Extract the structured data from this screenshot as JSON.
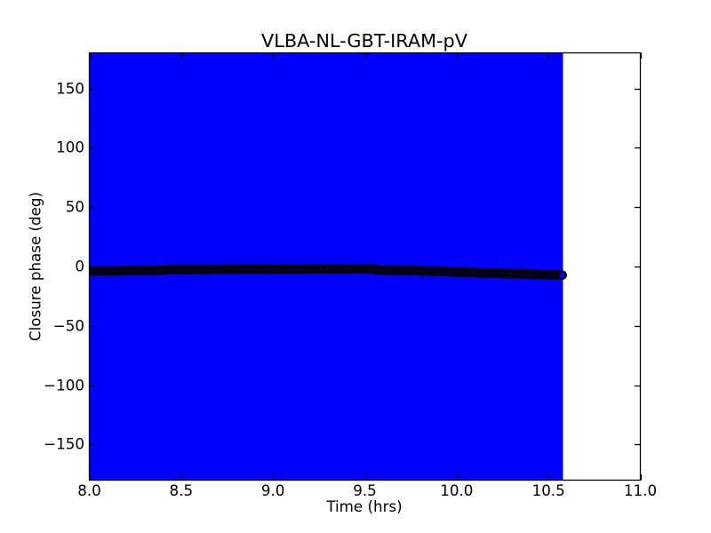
{
  "figure": {
    "background": "#ffffff",
    "frame_color": "#000000"
  },
  "chart_data": {
    "type": "errorbar",
    "title": "VLBA-NL-GBT-IRAM-pV",
    "xlabel": "Time (hrs)",
    "ylabel": "Closure phase (deg)",
    "xlim": [
      8.0,
      11.0
    ],
    "ylim": [
      -180,
      180
    ],
    "xticks": [
      8.0,
      8.5,
      9.0,
      9.5,
      10.0,
      10.5,
      11.0
    ],
    "xtick_labels": [
      "8.0",
      "8.5",
      "9.0",
      "9.5",
      "10.0",
      "10.5",
      "11.0"
    ],
    "yticks": [
      150,
      100,
      50,
      0,
      -50,
      -100,
      -150
    ],
    "ytick_labels": [
      "150",
      "100",
      "50",
      "0",
      "−50",
      "−100",
      "−150"
    ],
    "grid": false,
    "legend": null,
    "series": [
      {
        "name": "closure phase VLBA-NL-GBT-IRAM-pV",
        "marker": "o",
        "marker_face_color": "#0000ff",
        "marker_edge_color": "#000000",
        "line_color": "#000000",
        "errorbar_color": "#0000ff",
        "yerr_deg": 180,
        "t_start_hrs": 8.0,
        "t_end_hrs": 10.574,
        "point_spacing_hrs": 0.0165,
        "segments": [
          {
            "t0": 8.0,
            "t1": 8.165,
            "v0": -3.9,
            "v1": -3.8
          },
          {
            "t0": 8.165,
            "t1": 8.416,
            "v0": -3.3,
            "v1": -3.1
          },
          {
            "t0": 8.416,
            "t1": 8.765,
            "v0": -2.6,
            "v1": -2.4
          },
          {
            "t0": 8.765,
            "t1": 9.558,
            "v0": -2.3,
            "v1": -2.1
          },
          {
            "t0": 9.558,
            "t1": 9.805,
            "v0": -3.0,
            "v1": -3.3
          },
          {
            "t0": 9.805,
            "t1": 9.955,
            "v0": -3.9,
            "v1": -4.2
          },
          {
            "t0": 9.955,
            "t1": 10.11,
            "v0": -4.6,
            "v1": -4.9
          },
          {
            "t0": 10.11,
            "t1": 10.245,
            "v0": -5.3,
            "v1": -5.6
          },
          {
            "t0": 10.245,
            "t1": 10.385,
            "v0": -5.9,
            "v1": -6.2
          },
          {
            "t0": 10.385,
            "t1": 10.574,
            "v0": -6.5,
            "v1": -7.3
          }
        ]
      }
    ]
  }
}
